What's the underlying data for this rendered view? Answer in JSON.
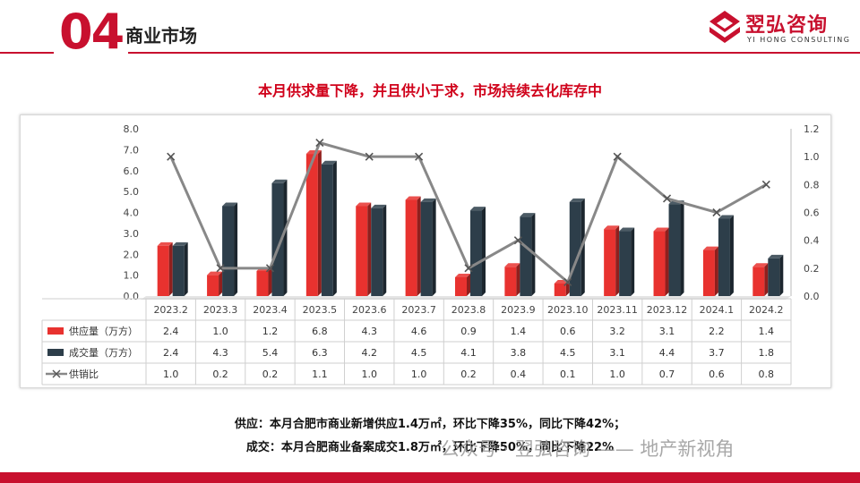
{
  "header": {
    "section_number": "04",
    "section_title": "商业市场",
    "logo_text": "翌弘咨询",
    "logo_subtext": "YI HONG CONSULTING",
    "accent_color": "#c8102e"
  },
  "chart_data": {
    "type": "bar",
    "title": "本月供求量下降，并且供小于求，市场持续去化库存中",
    "categories": [
      "2023.2",
      "2023.3",
      "2023.4",
      "2023.5",
      "2023.6",
      "2023.7",
      "2023.8",
      "2023.9",
      "2023.10",
      "2023.11",
      "2023.12",
      "2024.1",
      "2024.2"
    ],
    "series": [
      {
        "name": "供应量（万方）",
        "type": "bar",
        "axis": "left",
        "color": "#e8322f",
        "values": [
          2.4,
          1.0,
          1.2,
          6.8,
          4.3,
          4.6,
          0.9,
          1.4,
          0.6,
          3.2,
          3.1,
          2.2,
          1.4
        ],
        "labels": [
          "2.4",
          "1.0",
          "1.2",
          "6.8",
          "4.3",
          "4.6",
          "0.9",
          "1.4",
          "0.6",
          "3.2",
          "3.1",
          "2.2",
          "1.4"
        ]
      },
      {
        "name": "成交量（万方）",
        "type": "bar",
        "axis": "left",
        "color": "#2d3e4a",
        "values": [
          2.4,
          4.3,
          5.4,
          6.3,
          4.2,
          4.5,
          4.1,
          3.8,
          4.5,
          3.1,
          4.4,
          3.7,
          1.8
        ],
        "labels": [
          "2.4",
          "4.3",
          "5.4",
          "6.3",
          "4.2",
          "4.5",
          "4.1",
          "3.8",
          "4.5",
          "3.1",
          "4.4",
          "3.7",
          "1.8"
        ]
      },
      {
        "name": "供销比",
        "type": "line",
        "axis": "right",
        "color": "#888888",
        "values": [
          1.0,
          0.2,
          0.2,
          1.1,
          1.0,
          1.0,
          0.2,
          0.4,
          0.1,
          1.0,
          0.7,
          0.6,
          0.8
        ],
        "labels": [
          "1.0",
          "0.2",
          "0.2",
          "1.1",
          "1.0",
          "1.0",
          "0.2",
          "0.4",
          "0.1",
          "1.0",
          "0.7",
          "0.6",
          "0.8"
        ]
      }
    ],
    "left_axis": {
      "ylim": [
        0,
        8
      ],
      "ticks": [
        "0.0",
        "1.0",
        "2.0",
        "3.0",
        "4.0",
        "5.0",
        "6.0",
        "7.0",
        "8.0"
      ]
    },
    "right_axis": {
      "ylim": [
        0,
        1.2
      ],
      "ticks": [
        "0.0",
        "0.2",
        "0.4",
        "0.6",
        "0.8",
        "1.0",
        "1.2"
      ]
    },
    "grid": false,
    "legend": "data-table-below"
  },
  "notes": {
    "supply": "供应：本月合肥市商业新增供应1.4万㎡，环比下降35%，同比下降42%；",
    "deal": "成交：本月合肥商业备案成交1.8万㎡，环比下降50%，同比下降22%"
  },
  "watermark": "公众号 · 翌弘咨询 —— 地产新视角"
}
